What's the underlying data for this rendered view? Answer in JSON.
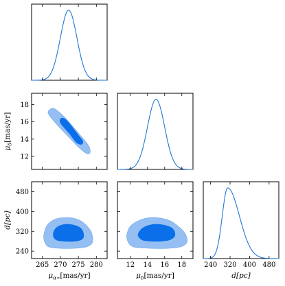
{
  "colors": {
    "line": "#1f77d4",
    "inner_contour": "#0a6fe8",
    "outer_contour": "#95bff2"
  },
  "chart_data": {
    "type": "corner",
    "parameters": [
      {
        "name": "mu_alpha",
        "label_main": "μ",
        "label_sub": "α∗",
        "label_unit": "[mas/yr]",
        "range": [
          262,
          283
        ],
        "ticks": [
          265,
          270,
          275,
          280
        ]
      },
      {
        "name": "mu_delta",
        "label_main": "μ",
        "label_sub": "δ",
        "label_unit": "[mas/yr]",
        "range": [
          10.5,
          19.3
        ],
        "ticks": [
          12,
          14,
          16,
          18
        ]
      },
      {
        "name": "distance",
        "label_main": "d[pc]",
        "label_sub": "",
        "label_unit": "",
        "range": [
          210,
          520
        ],
        "ticks": [
          240,
          320,
          400,
          480
        ]
      }
    ],
    "marginals": [
      {
        "param": "mu_alpha",
        "type": "gaussian",
        "mean": 272.3,
        "sigma": 2.3
      },
      {
        "param": "mu_delta",
        "type": "gaussian",
        "mean": 15.0,
        "sigma": 1.0
      },
      {
        "param": "distance",
        "type": "skewed",
        "mode": 310,
        "sigma_left": 22,
        "sigma_right": 48
      }
    ],
    "joint_contours": [
      {
        "x": "mu_alpha",
        "y": "mu_delta",
        "levels": [
          {
            "name": "outer",
            "points": [
              [
                267,
                17.4
              ],
              [
                268.4,
                17.5
              ],
              [
                271.5,
                16.4
              ],
              [
                274.6,
                14.9
              ],
              [
                277.6,
                13.4
              ],
              [
                278.3,
                12.6
              ],
              [
                277.6,
                12.3
              ],
              [
                275.5,
                12.9
              ],
              [
                272.2,
                14.3
              ],
              [
                269.0,
                15.7
              ],
              [
                266.7,
                16.9
              ]
            ]
          },
          {
            "name": "inner",
            "points": [
              [
                270.2,
                16.4
              ],
              [
                271.4,
                16.3
              ],
              [
                273.1,
                15.5
              ],
              [
                275.1,
                14.4
              ],
              [
                276.2,
                13.8
              ],
              [
                275.9,
                13.4
              ],
              [
                274.5,
                13.6
              ],
              [
                272.6,
                14.6
              ],
              [
                270.7,
                15.5
              ],
              [
                269.9,
                16.0
              ]
            ]
          }
        ]
      },
      {
        "x": "mu_alpha",
        "y": "distance",
        "levels": [
          {
            "name": "outer",
            "points": [
              [
                266.6,
                258
              ],
              [
                269.0,
                252
              ],
              [
                273.0,
                251
              ],
              [
                276.6,
                255
              ],
              [
                278.6,
                268
              ],
              [
                279.0,
                290
              ],
              [
                278.3,
                325
              ],
              [
                275.8,
                361
              ],
              [
                272.6,
                375
              ],
              [
                268.8,
                370
              ],
              [
                266.3,
                344
              ],
              [
                265.4,
                305
              ],
              [
                265.6,
                278
              ]
            ]
          },
          {
            "name": "inner",
            "points": [
              [
                268.9,
                285
              ],
              [
                271.0,
                280
              ],
              [
                274.0,
                280
              ],
              [
                276.0,
                288
              ],
              [
                276.5,
                305
              ],
              [
                275.7,
                332
              ],
              [
                273.5,
                346
              ],
              [
                270.8,
                347
              ],
              [
                268.7,
                332
              ],
              [
                268.0,
                305
              ]
            ]
          }
        ]
      },
      {
        "x": "mu_delta",
        "y": "distance",
        "levels": [
          {
            "name": "outer",
            "points": [
              [
                12.3,
                258
              ],
              [
                13.9,
                252
              ],
              [
                16.1,
                251
              ],
              [
                17.7,
                256
              ],
              [
                18.5,
                270
              ],
              [
                18.6,
                292
              ],
              [
                18.1,
                324
              ],
              [
                16.7,
                361
              ],
              [
                15.1,
                375
              ],
              [
                13.5,
                370
              ],
              [
                12.1,
                344
              ],
              [
                11.6,
                307
              ],
              [
                11.7,
                280
              ]
            ]
          },
          {
            "name": "inner",
            "points": [
              [
                13.4,
                285
              ],
              [
                14.4,
                280
              ],
              [
                15.6,
                280
              ],
              [
                16.7,
                287
              ],
              [
                17.2,
                305
              ],
              [
                16.9,
                332
              ],
              [
                15.8,
                346
              ],
              [
                14.5,
                347
              ],
              [
                13.4,
                332
              ],
              [
                12.9,
                305
              ]
            ]
          }
        ]
      }
    ]
  }
}
